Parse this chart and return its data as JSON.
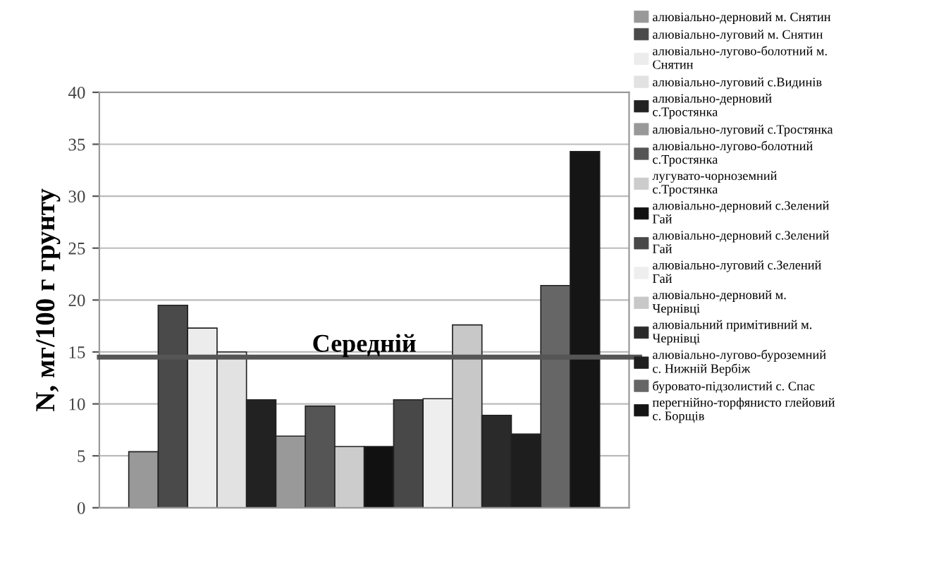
{
  "chart_data": {
    "type": "bar",
    "ylabel": "N, мг/100 г грунту",
    "categories": [
      null
    ],
    "series": [
      {
        "name": "алювіально-дерновий м. Снятин",
        "color": "#999999",
        "values": [
          5.4
        ]
      },
      {
        "name": "алювіально-луговий м. Снятин",
        "color": "#4a4a4a",
        "values": [
          19.5
        ]
      },
      {
        "name": "алювіально-лугово-болотний м. Снятин",
        "color": "#ececec",
        "values": [
          17.3
        ]
      },
      {
        "name": "алювіально-луговий с.Видинів",
        "color": "#e2e2e2",
        "values": [
          15.0
        ]
      },
      {
        "name": "алювіально-дерновий с.Тростянка",
        "color": "#222222",
        "values": [
          10.4
        ]
      },
      {
        "name": "алювіально-луговий с.Тростянка",
        "color": "#999999",
        "values": [
          6.9
        ]
      },
      {
        "name": "алювіально-лугово-болотний с.Тростянка",
        "color": "#555555",
        "values": [
          9.8
        ]
      },
      {
        "name": "лугувато-чорноземний с.Тростянка",
        "color": "#cccccc",
        "values": [
          5.9
        ]
      },
      {
        "name": "алювіально-дерновий с.Зелений Гай",
        "color": "#111111",
        "values": [
          5.9
        ]
      },
      {
        "name": "алювіально-дерновий с.Зелений Гай",
        "color": "#484848",
        "values": [
          10.4
        ]
      },
      {
        "name": "алювіально-луговий с.Зелений Гай",
        "color": "#eeeeee",
        "values": [
          10.5
        ]
      },
      {
        "name": "алювіально-дерновий м. Чернівці",
        "color": "#c8c8c8",
        "values": [
          17.6
        ]
      },
      {
        "name": "алювіальний примітивний м. Чернівці",
        "color": "#2a2a2a",
        "values": [
          8.9
        ]
      },
      {
        "name": "алювіально-лугово-буроземний с. Нижній Вербіж",
        "color": "#1e1e1e",
        "values": [
          7.1
        ]
      },
      {
        "name": "буровато-підзолистий с. Спас",
        "color": "#666666",
        "values": [
          21.4
        ]
      },
      {
        "name": "перегнійно-торфянисто глейовий с. Борщів",
        "color": "#151515",
        "values": [
          34.3
        ]
      }
    ],
    "ylim": [
      0,
      40
    ],
    "yticks": [
      0,
      5,
      10,
      15,
      20,
      25,
      30,
      35,
      40
    ],
    "grid": "y",
    "legend": "right",
    "tick_labels": "y",
    "ref_lines": [
      {
        "axis": "y",
        "value": 14.5,
        "label": "Середній",
        "color": "#555555"
      }
    ]
  }
}
